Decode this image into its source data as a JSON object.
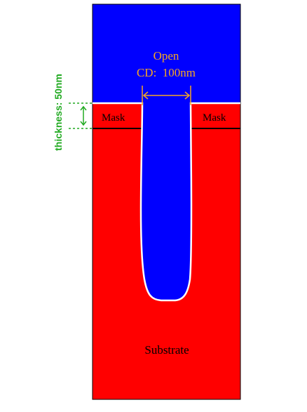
{
  "labels": {
    "open": "Open",
    "cd": "CD:  100nm",
    "mask_left": "Mask",
    "mask_right": "Mask",
    "substrate": "Substrate",
    "thickness": "thickness: 50nm"
  },
  "colors": {
    "plasma_region": "#0000ff",
    "material_region": "#ff0000",
    "profile_line": "#ffffff",
    "interface_line": "#000000",
    "dimension_annotation": "#f5a623",
    "thickness_annotation": "#22aa22"
  }
}
